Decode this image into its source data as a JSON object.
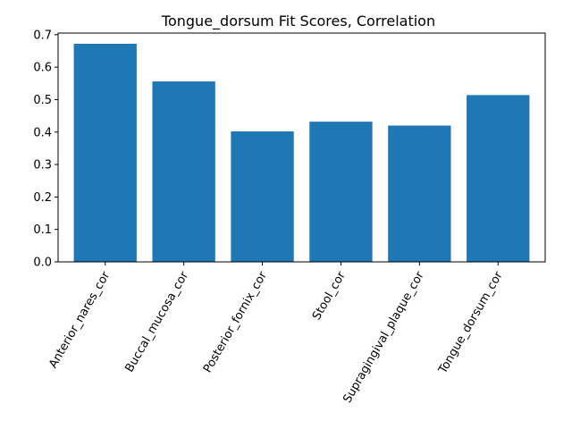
{
  "chart_data": {
    "type": "bar",
    "title": "Tongue_dorsum Fit Scores, Correlation",
    "xlabel": "",
    "ylabel": "",
    "categories": [
      "Anterior_nares_cor",
      "Buccal_mucosa_cor",
      "Posterior_fornix_cor",
      "Stool_cor",
      "Supragingival_plaque_cor",
      "Tongue_dorsum_cor"
    ],
    "values": [
      0.672,
      0.556,
      0.402,
      0.432,
      0.42,
      0.514
    ],
    "ylim": [
      0,
      0.705
    ],
    "yticks": [
      0.0,
      0.1,
      0.2,
      0.3,
      0.4,
      0.5,
      0.6,
      0.7
    ],
    "ytick_labels": [
      "0.0",
      "0.1",
      "0.2",
      "0.3",
      "0.4",
      "0.5",
      "0.6",
      "0.7"
    ],
    "grid": false,
    "bar_color": "#1f77b4"
  }
}
